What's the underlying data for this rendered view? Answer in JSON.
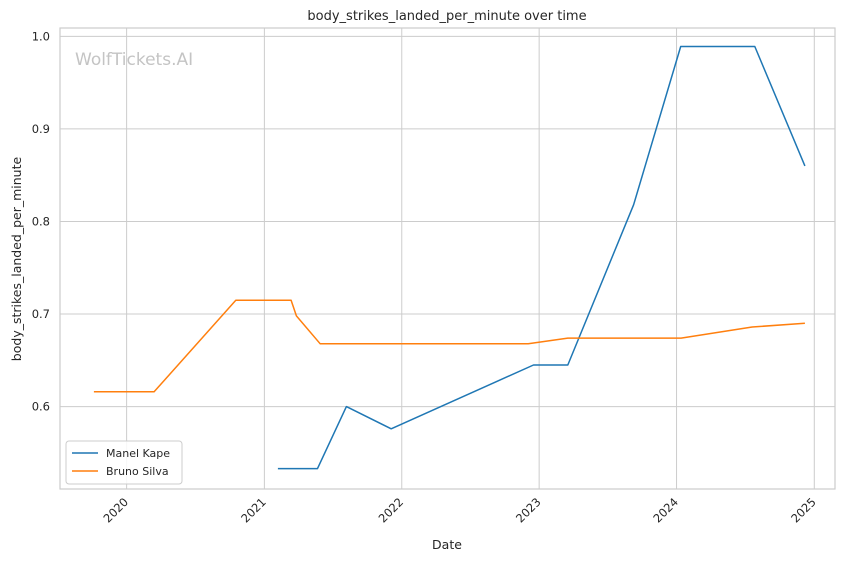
{
  "watermark": "WolfTickets.AI",
  "chart_data": {
    "type": "line",
    "title": "body_strikes_landed_per_minute over time",
    "xlabel": "Date",
    "ylabel": "body_strikes_landed_per_minute",
    "xlim": [
      "2019-07-08",
      "2025-02-25"
    ],
    "ylim": [
      0.511,
      1.009
    ],
    "x_ticks": [
      "2020",
      "2021",
      "2022",
      "2023",
      "2024",
      "2025"
    ],
    "y_ticks": [
      "0.6",
      "0.7",
      "0.8",
      "0.9",
      "1.0"
    ],
    "grid": true,
    "legend_position": "lower-left",
    "series": [
      {
        "name": "Manel Kape",
        "color": "#1f77b4",
        "points": [
          [
            "2021-02-06",
            0.533
          ],
          [
            "2021-05-22",
            0.533
          ],
          [
            "2021-08-07",
            0.6
          ],
          [
            "2021-12-04",
            0.576
          ],
          [
            "2022-12-17",
            0.645
          ],
          [
            "2023-03-18",
            0.645
          ],
          [
            "2023-09-09",
            0.818
          ],
          [
            "2024-01-12",
            0.989
          ],
          [
            "2024-07-27",
            0.989
          ],
          [
            "2024-12-07",
            0.86
          ]
        ]
      },
      {
        "name": "Bruno Silva",
        "color": "#ff7f0e",
        "points": [
          [
            "2019-10-06",
            0.616
          ],
          [
            "2020-03-14",
            0.616
          ],
          [
            "2020-10-17",
            0.715
          ],
          [
            "2021-03-13",
            0.715
          ],
          [
            "2021-03-27",
            0.698
          ],
          [
            "2021-05-29",
            0.668
          ],
          [
            "2022-12-03",
            0.668
          ],
          [
            "2023-03-18",
            0.674
          ],
          [
            "2024-01-13",
            0.674
          ],
          [
            "2024-07-20",
            0.686
          ],
          [
            "2024-12-07",
            0.69
          ]
        ]
      }
    ]
  }
}
